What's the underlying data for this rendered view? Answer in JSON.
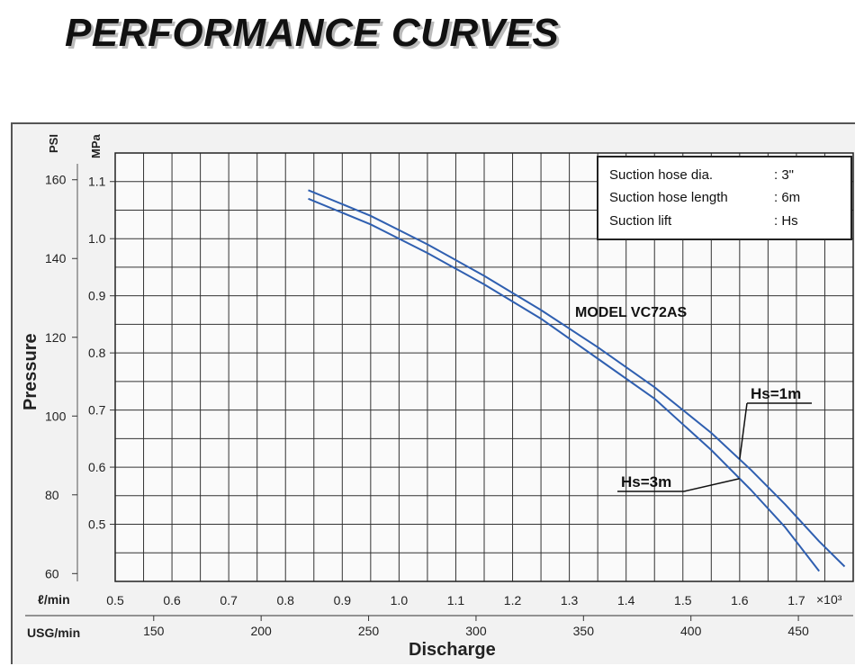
{
  "page": {
    "title": "PERFORMANCE CURVES"
  },
  "chart_data": {
    "type": "line",
    "ylabel": "Pressure",
    "xlabel": "Discharge",
    "x_unit_lmin": "ℓ/min",
    "x_multiplier": "×10³",
    "x_unit_usg": "USG/min",
    "y_unit_psi": "PSI",
    "y_unit_mpa": "MPa",
    "xlim_lmin": [
      0.5,
      1.8
    ],
    "ylim_mpa": [
      0.4,
      1.15
    ],
    "x_ticks_lmin": [
      "0.5",
      "0.6",
      "0.7",
      "0.8",
      "0.9",
      "1.0",
      "1.1",
      "1.2",
      "1.3",
      "1.4",
      "1.5",
      "1.6",
      "1.7"
    ],
    "x_ticks_usg": [
      "150",
      "200",
      "250",
      "300",
      "350",
      "400",
      "450"
    ],
    "y_ticks_mpa": [
      "0.5",
      "0.6",
      "0.7",
      "0.8",
      "0.9",
      "1.0",
      "1.1"
    ],
    "y_ticks_psi": [
      "60",
      "80",
      "100",
      "120",
      "140",
      "160"
    ],
    "grid": true,
    "conditions": [
      {
        "label": "Suction hose dia.",
        "value": ": 3\""
      },
      {
        "label": "Suction hose length",
        "value": ": 6m"
      },
      {
        "label": "Suction lift",
        "value": ": Hs"
      }
    ],
    "model_label": "MODEL VC72AS",
    "series": [
      {
        "name": "Hs=1m",
        "color": "#2f5fb0",
        "x": [
          0.84,
          0.95,
          1.05,
          1.15,
          1.25,
          1.35,
          1.45,
          1.55,
          1.62,
          1.68,
          1.74,
          1.785
        ],
        "y": [
          1.085,
          1.04,
          0.99,
          0.935,
          0.875,
          0.81,
          0.74,
          0.66,
          0.595,
          0.535,
          0.47,
          0.426
        ]
      },
      {
        "name": "Hs=3m",
        "color": "#2f5fb0",
        "x": [
          0.84,
          0.95,
          1.05,
          1.15,
          1.25,
          1.35,
          1.45,
          1.55,
          1.62,
          1.68,
          1.74
        ],
        "y": [
          1.07,
          1.025,
          0.975,
          0.92,
          0.86,
          0.79,
          0.72,
          0.63,
          0.56,
          0.495,
          0.418
        ]
      }
    ],
    "annotations": [
      {
        "text": "Hs=1m",
        "target_series": "Hs=1m",
        "at_x": 1.6
      },
      {
        "text": "Hs=3m",
        "target_series": "Hs=3m",
        "at_x": 1.6
      }
    ]
  }
}
